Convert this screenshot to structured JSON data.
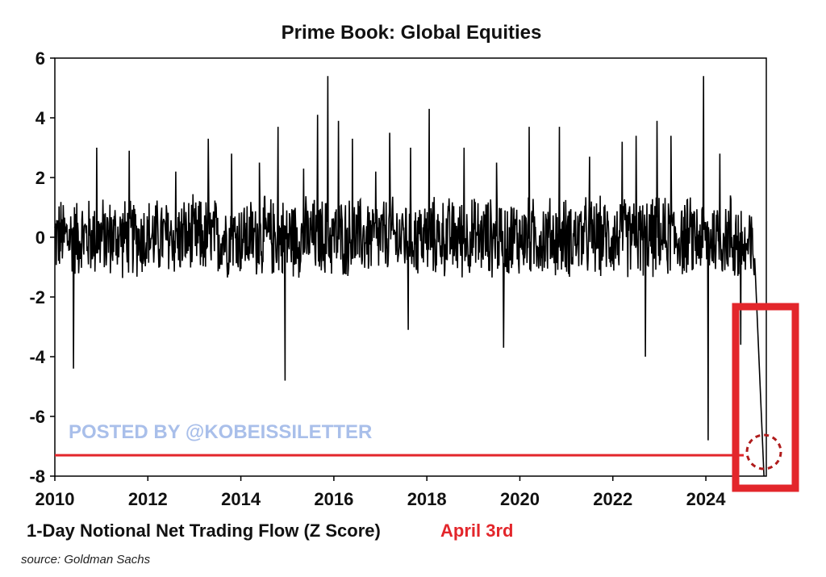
{
  "chart_data": {
    "type": "line",
    "title": "Prime Book: Global Equities",
    "xlabel": "1-Day Notional Net Trading Flow (Z Score)",
    "ylabel": "",
    "xlim": [
      2010,
      2025.3
    ],
    "ylim": [
      -8,
      6
    ],
    "x_ticks": [
      "2010",
      "2012",
      "2014",
      "2016",
      "2018",
      "2020",
      "2022",
      "2024"
    ],
    "y_ticks": [
      "6",
      "4",
      "2",
      "0",
      "-2",
      "-4",
      "-6",
      "-8"
    ],
    "grid": false,
    "series": [
      {
        "color": "#000000",
        "baseline_band": [
          -1.5,
          1.5
        ],
        "peaks": [
          {
            "x": 2010.4,
            "y": -4.4
          },
          {
            "x": 2010.9,
            "y": 3.0
          },
          {
            "x": 2011.6,
            "y": 2.9
          },
          {
            "x": 2012.6,
            "y": 2.2
          },
          {
            "x": 2013.3,
            "y": 3.3
          },
          {
            "x": 2013.8,
            "y": 2.8
          },
          {
            "x": 2014.4,
            "y": 2.5
          },
          {
            "x": 2014.8,
            "y": 3.7
          },
          {
            "x": 2014.95,
            "y": -4.8
          },
          {
            "x": 2015.35,
            "y": 2.3
          },
          {
            "x": 2015.65,
            "y": 4.1
          },
          {
            "x": 2015.87,
            "y": 5.4
          },
          {
            "x": 2016.1,
            "y": 3.9
          },
          {
            "x": 2016.4,
            "y": 3.3
          },
          {
            "x": 2016.9,
            "y": 2.2
          },
          {
            "x": 2017.2,
            "y": 3.5
          },
          {
            "x": 2017.65,
            "y": 3.0
          },
          {
            "x": 2017.6,
            "y": -3.1
          },
          {
            "x": 2018.05,
            "y": 4.3
          },
          {
            "x": 2018.8,
            "y": 3.0
          },
          {
            "x": 2019.5,
            "y": 2.5
          },
          {
            "x": 2019.65,
            "y": -3.7
          },
          {
            "x": 2020.2,
            "y": 3.7
          },
          {
            "x": 2020.85,
            "y": 3.7
          },
          {
            "x": 2021.5,
            "y": 2.7
          },
          {
            "x": 2022.2,
            "y": 3.2
          },
          {
            "x": 2022.5,
            "y": 3.4
          },
          {
            "x": 2022.7,
            "y": -4.0
          },
          {
            "x": 2022.95,
            "y": 3.9
          },
          {
            "x": 2023.25,
            "y": 3.4
          },
          {
            "x": 2023.95,
            "y": 5.4
          },
          {
            "x": 2024.05,
            "y": -6.8
          },
          {
            "x": 2024.3,
            "y": 2.8
          },
          {
            "x": 2024.75,
            "y": -3.6
          },
          {
            "x": 2025.25,
            "y": -8.0
          }
        ]
      }
    ],
    "reference_line": {
      "y": -7.3,
      "color": "#e3262b"
    },
    "annotation": {
      "text": "April 3rd",
      "color": "#e3262b"
    }
  },
  "watermark": "POSTED BY @KOBEISSILETTER",
  "source": "source: Goldman Sachs"
}
